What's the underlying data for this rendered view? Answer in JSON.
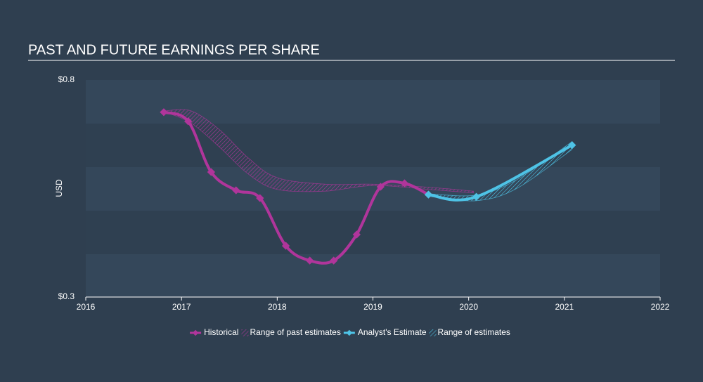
{
  "chart_data": {
    "type": "line",
    "title": "PAST AND FUTURE EARNINGS PER SHARE",
    "y_label": "USD",
    "xlim": [
      2016,
      2022
    ],
    "xticks": [
      2016,
      2017,
      2018,
      2019,
      2020,
      2021,
      2022
    ],
    "ylim": [
      0.3,
      0.8
    ],
    "yticks": [
      {
        "value": 0.8,
        "label": "$0.8"
      },
      {
        "value": 0.3,
        "label": "$0.3"
      }
    ],
    "ranges": [
      {
        "name": "Range of past estimates",
        "color": "#b0359b",
        "x": [
          2016.83,
          2017.1,
          2017.4,
          2017.7,
          2018.0,
          2018.5,
          2019.0,
          2019.58,
          2020.05
        ],
        "low": [
          0.726,
          0.701,
          0.645,
          0.583,
          0.548,
          0.544,
          0.557,
          0.548,
          0.54
        ],
        "high": [
          0.729,
          0.729,
          0.685,
          0.62,
          0.575,
          0.56,
          0.56,
          0.553,
          0.544
        ]
      },
      {
        "name": "Range of estimates",
        "color": "#4ec3e6",
        "x": [
          2019.58,
          2020.08,
          2020.5,
          2021.08
        ],
        "low": [
          0.532,
          0.522,
          0.55,
          0.64
        ],
        "high": [
          0.538,
          0.535,
          0.57,
          0.658
        ]
      }
    ],
    "series": [
      {
        "name": "Historical",
        "color": "#b0359b",
        "x": [
          2016.815,
          2017.07,
          2017.31,
          2017.57,
          2017.82,
          2018.09,
          2018.34,
          2018.59,
          2018.83,
          2019.08,
          2019.33,
          2019.58
        ],
        "values": [
          0.726,
          0.705,
          0.588,
          0.546,
          0.528,
          0.418,
          0.384,
          0.384,
          0.444,
          0.554,
          0.562,
          0.536
        ]
      },
      {
        "name": "Analyst's Estimate",
        "color": "#4ec3e6",
        "x": [
          2019.58,
          2020.08,
          2021.08
        ],
        "values": [
          0.536,
          0.531,
          0.65
        ]
      }
    ]
  }
}
